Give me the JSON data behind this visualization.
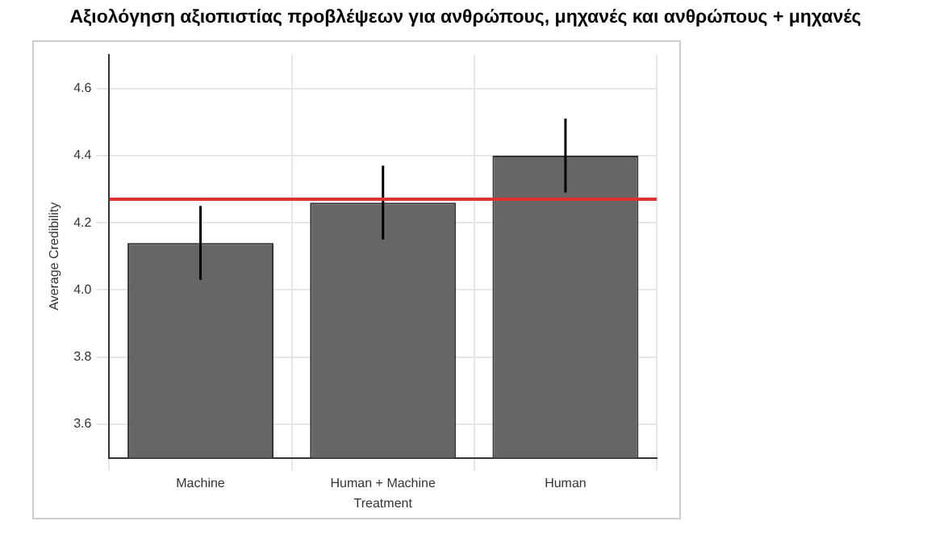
{
  "chart_data": {
    "type": "bar",
    "title": "Αξιολόγηση αξιοπιστίας προβλέψεων για ανθρώπους, μηχανές και ανθρώπους + μηχανές",
    "xlabel": "Treatment",
    "ylabel": "Average Credibility",
    "categories": [
      "Machine",
      "Human + Machine",
      "Human"
    ],
    "values": [
      4.14,
      4.26,
      4.4
    ],
    "errors": [
      0.11,
      0.11,
      0.11
    ],
    "color": "#666666",
    "ylim": [
      3.5,
      4.7
    ],
    "yticks": [
      3.6,
      3.8,
      {
        "value": 4.0,
        "label": "4.0"
      },
      4.2,
      4.4,
      4.6
    ],
    "ref_lines": [
      {
        "axis": "y",
        "value": 4.27,
        "color": "#e03030"
      }
    ],
    "grid": true,
    "legend": false
  }
}
